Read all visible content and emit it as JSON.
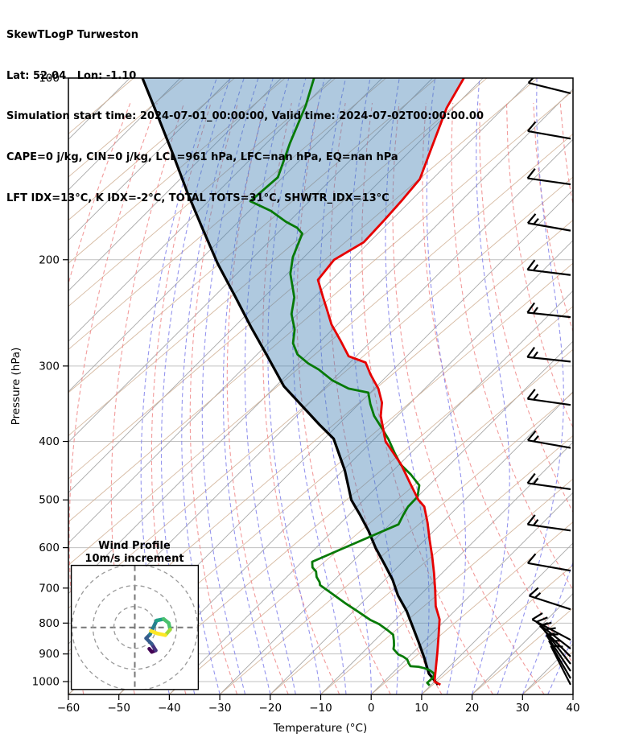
{
  "header": {
    "line1": "SkewTLogP Turweston",
    "line2": "Lat: 52.04   Lon: -1.10",
    "line3": "Simulation start time: 2024-07-01_00:00:00, Valid time: 2024-07-02T00:00:00.00",
    "line4": "CAPE=0 j/kg, CIN=0 j/kg, LCL=961 hPa, LFC=nan hPa, EQ=nan hPa",
    "line5": "LFT IDX=13°C, K IDX=-2°C, TOTAL TOTS=31°C, SHWTR_IDX=13°C"
  },
  "axes": {
    "xlabel": "Temperature (°C)",
    "ylabel": "Pressure (hPa)",
    "x_ticks": [
      -60,
      -50,
      -40,
      -30,
      -20,
      -10,
      0,
      10,
      20,
      30,
      40
    ],
    "x_tick_labels": [
      "−60",
      "−50",
      "−40",
      "−30",
      "−20",
      "−10",
      "0",
      "10",
      "20",
      "30",
      "40"
    ],
    "y_ticks": [
      100,
      200,
      300,
      400,
      500,
      600,
      700,
      800,
      900,
      1000
    ],
    "y_tick_labels": [
      "100",
      "200",
      "300",
      "400",
      "500",
      "600",
      "700",
      "800",
      "900",
      "1000"
    ]
  },
  "inset": {
    "title": "Wind Profile",
    "subtitle": "10m/s increment",
    "ring_speeds_ms": [
      10,
      20,
      30
    ]
  },
  "colors": {
    "temperature": "#e60000",
    "dewpoint": "#077a07",
    "parcel": "#000000",
    "fill": "rgba(70,130,180,0.43)",
    "dry_adiabat": "#f08a8a",
    "moist_adiabat": "#7b7bea",
    "isotherm": "#a8a8a8",
    "isobar": "#c0c0c0",
    "mixing_line": "#cfae92",
    "barb": "#000000",
    "viridis": [
      "#440154",
      "#46327e",
      "#365c8d",
      "#277f8e",
      "#1fa187",
      "#4ac16d",
      "#a0da39",
      "#fde725"
    ]
  },
  "chart_data": {
    "type": "line",
    "title": "SkewTLogP Turweston sounding",
    "xlabel": "Temperature (°C)",
    "ylabel": "Pressure (hPa)",
    "xlim": [
      -60,
      40
    ],
    "pressure_lim": [
      100,
      1050
    ],
    "skew_degrees": 45,
    "grid": "skew-t background: isobars, skewed isotherms, dry adiabats, moist adiabats, mixing-ratio lines",
    "legend_position": "none",
    "series": [
      {
        "name": "temperature",
        "units": [
          "hPa",
          "degC"
        ],
        "points": [
          [
            100,
            -103.8
          ],
          [
            112,
            -101.3
          ],
          [
            130,
            -96.5
          ],
          [
            147,
            -92.5
          ],
          [
            160,
            -91.8
          ],
          [
            172,
            -91.4
          ],
          [
            187,
            -91.1
          ],
          [
            200,
            -93.5
          ],
          [
            216,
            -92.7
          ],
          [
            231,
            -88.2
          ],
          [
            241,
            -85.3
          ],
          [
            256,
            -81.2
          ],
          [
            272,
            -76.3
          ],
          [
            289,
            -71.5
          ],
          [
            296,
            -66.9
          ],
          [
            310,
            -63.5
          ],
          [
            327,
            -59.2
          ],
          [
            345,
            -55.7
          ],
          [
            363,
            -53.3
          ],
          [
            400,
            -47.3
          ],
          [
            437,
            -39.6
          ],
          [
            470,
            -34.0
          ],
          [
            500,
            -29.2
          ],
          [
            513,
            -26.7
          ],
          [
            546,
            -22.8
          ],
          [
            582,
            -19.1
          ],
          [
            620,
            -15.3
          ],
          [
            661,
            -11.6
          ],
          [
            704,
            -8.1
          ],
          [
            750,
            -4.7
          ],
          [
            789,
            -1.3
          ],
          [
            839,
            1.7
          ],
          [
            893,
            4.7
          ],
          [
            940,
            7.1
          ],
          [
            1000,
            10.0
          ],
          [
            1012,
            11.8
          ]
        ]
      },
      {
        "name": "dewpoint",
        "units": [
          "hPa",
          "degC"
        ],
        "points": [
          [
            100,
            -133.5
          ],
          [
            111,
            -129.7
          ],
          [
            128,
            -125.4
          ],
          [
            146,
            -121.0
          ],
          [
            160,
            -121.7
          ],
          [
            166,
            -115.7
          ],
          [
            173,
            -110.6
          ],
          [
            177,
            -107.2
          ],
          [
            181,
            -105.0
          ],
          [
            198,
            -102.2
          ],
          [
            211,
            -99.4
          ],
          [
            231,
            -93.9
          ],
          [
            246,
            -91.2
          ],
          [
            261,
            -87.5
          ],
          [
            275,
            -85.1
          ],
          [
            287,
            -82.0
          ],
          [
            297,
            -78.1
          ],
          [
            304,
            -74.8
          ],
          [
            317,
            -69.9
          ],
          [
            327,
            -65.1
          ],
          [
            332,
            -60.4
          ],
          [
            347,
            -57.7
          ],
          [
            363,
            -54.6
          ],
          [
            381,
            -50.5
          ],
          [
            397,
            -47.1
          ],
          [
            417,
            -43.4
          ],
          [
            437,
            -39.7
          ],
          [
            454,
            -35.7
          ],
          [
            473,
            -31.9
          ],
          [
            494,
            -30.0
          ],
          [
            513,
            -29.9
          ],
          [
            530,
            -29.2
          ],
          [
            549,
            -28.3
          ],
          [
            590,
            -33.2
          ],
          [
            633,
            -38.0
          ],
          [
            647,
            -36.8
          ],
          [
            657,
            -35.3
          ],
          [
            671,
            -34.1
          ],
          [
            684,
            -32.5
          ],
          [
            692,
            -31.8
          ],
          [
            713,
            -28.1
          ],
          [
            741,
            -23.3
          ],
          [
            767,
            -18.8
          ],
          [
            790,
            -15.0
          ],
          [
            803,
            -12.4
          ],
          [
            824,
            -9.2
          ],
          [
            836,
            -7.5
          ],
          [
            855,
            -6.2
          ],
          [
            871,
            -5.2
          ],
          [
            883,
            -4.6
          ],
          [
            902,
            -2.5
          ],
          [
            909,
            -1.2
          ],
          [
            919,
            0.2
          ],
          [
            933,
            1.3
          ],
          [
            943,
            2.2
          ],
          [
            945,
            3.9
          ],
          [
            950,
            5.3
          ],
          [
            957,
            6.7
          ],
          [
            967,
            8.0
          ],
          [
            974,
            8.6
          ],
          [
            987,
            8.9
          ],
          [
            1005,
            8.8
          ],
          [
            1015,
            9.8
          ]
        ]
      },
      {
        "name": "parcel",
        "units": [
          "hPa",
          "degC"
        ],
        "points": [
          [
            100,
            -167.5
          ],
          [
            115,
            -157.3
          ],
          [
            134,
            -146.2
          ],
          [
            155,
            -135.8
          ],
          [
            177,
            -126.0
          ],
          [
            203,
            -115.8
          ],
          [
            229,
            -106.2
          ],
          [
            259,
            -96.5
          ],
          [
            289,
            -87.6
          ],
          [
            324,
            -78.4
          ],
          [
            375,
            -63.8
          ],
          [
            396,
            -58.1
          ],
          [
            447,
            -49.6
          ],
          [
            500,
            -42.5
          ],
          [
            530,
            -37.7
          ],
          [
            563,
            -32.9
          ],
          [
            601,
            -28.1
          ],
          [
            638,
            -23.3
          ],
          [
            678,
            -18.5
          ],
          [
            720,
            -14.3
          ],
          [
            764,
            -9.5
          ],
          [
            811,
            -5.2
          ],
          [
            861,
            -0.9
          ],
          [
            914,
            3.3
          ],
          [
            970,
            7.3
          ],
          [
            1012,
            11.3
          ]
        ]
      }
    ],
    "shading": {
      "between": [
        "parcel",
        "temperature"
      ],
      "meaning": "area between parcel curve and temperature curve"
    },
    "wind_barbs": {
      "format": [
        "pressure_hPa",
        "staff_angle_deg_above_horizontal",
        "full_barbs",
        "half_barbs"
      ],
      "levels": [
        [
          106,
          14,
          1,
          0
        ],
        [
          126,
          10,
          1,
          0
        ],
        [
          150,
          8,
          1,
          0
        ],
        [
          179,
          10,
          1,
          1
        ],
        [
          212,
          7,
          1,
          1
        ],
        [
          249,
          6,
          1,
          1
        ],
        [
          295,
          6,
          1,
          1
        ],
        [
          348,
          8,
          1,
          1
        ],
        [
          410,
          10,
          1,
          1
        ],
        [
          480,
          8,
          1,
          1
        ],
        [
          562,
          8,
          1,
          1
        ],
        [
          655,
          10,
          1,
          0
        ],
        [
          759,
          18,
          1,
          1
        ],
        [
          853,
          28,
          1,
          0
        ],
        [
          882,
          38,
          1,
          1
        ],
        [
          909,
          45,
          1,
          0
        ],
        [
          935,
          52,
          1,
          1
        ],
        [
          961,
          56,
          1,
          0
        ],
        [
          988,
          60,
          1,
          1
        ],
        [
          1012,
          63,
          1,
          0
        ]
      ]
    },
    "hodograph_trace_uv_ms": [
      [
        6.9,
        -10.2
      ],
      [
        8.1,
        -11.7
      ],
      [
        10.0,
        -11.0
      ],
      [
        8.1,
        -7.9
      ],
      [
        5.4,
        -5.2
      ],
      [
        7.3,
        -3.3
      ],
      [
        10.4,
        3.3
      ],
      [
        13.8,
        4.0
      ],
      [
        16.2,
        2.1
      ],
      [
        16.9,
        -1.0
      ],
      [
        14.6,
        -3.7
      ],
      [
        10.8,
        -2.9
      ],
      [
        7.7,
        -1.7
      ]
    ]
  }
}
